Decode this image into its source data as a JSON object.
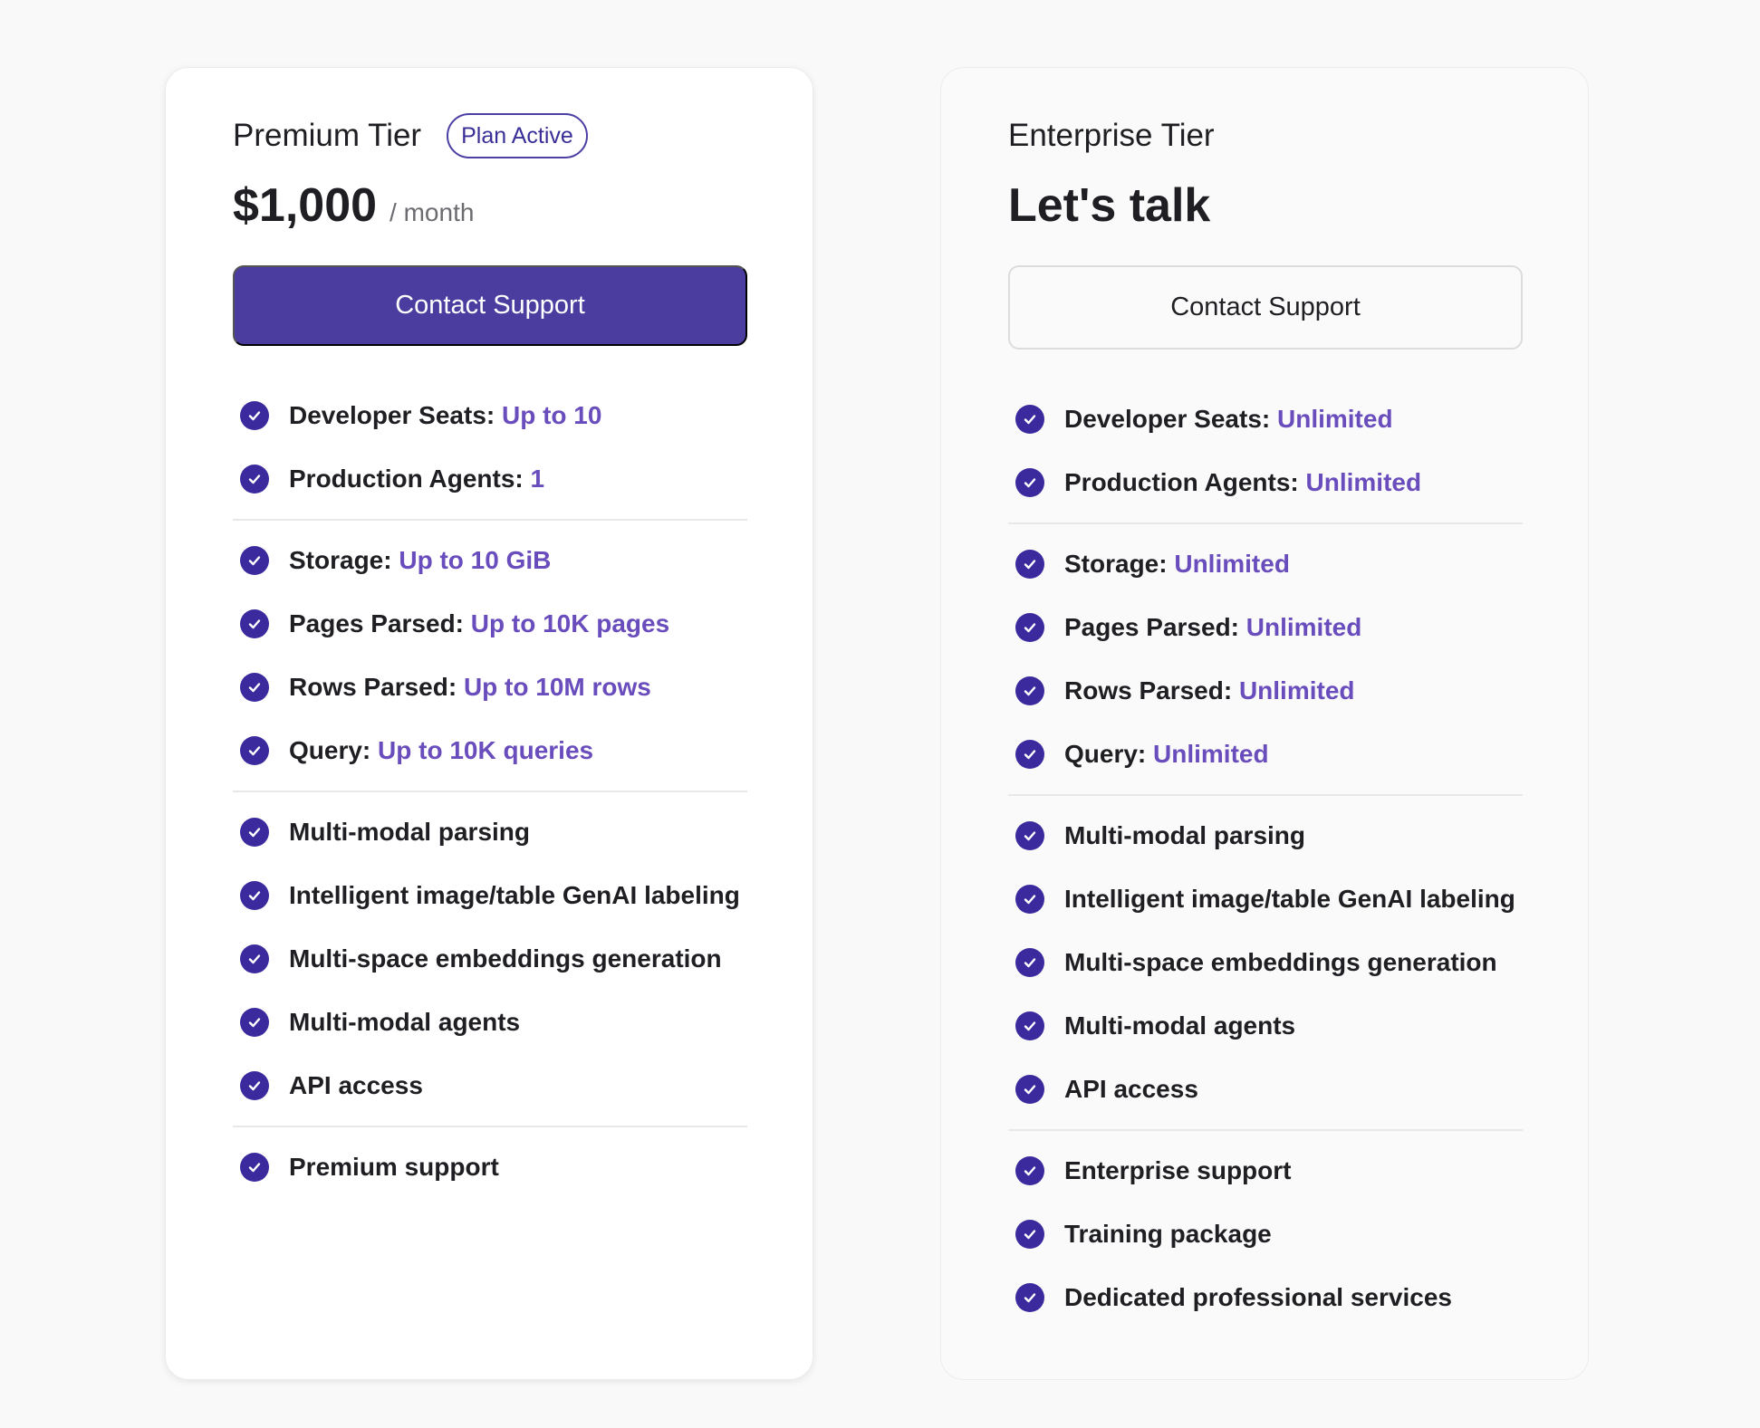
{
  "colors": {
    "accent": "#4a3d9f",
    "check": "#3b2a9e",
    "value": "#6a4dbd",
    "badge_border": "#4b3fa3"
  },
  "premium": {
    "name": "Premium Tier",
    "badge": "Plan Active",
    "price": "$1,000",
    "period": "/ month",
    "button": "Contact Support",
    "groups": [
      [
        {
          "label": "Developer Seats:",
          "value": "Up to 10"
        },
        {
          "label": "Production Agents:",
          "value": "1"
        }
      ],
      [
        {
          "label": "Storage:",
          "value": "Up to 10 GiB"
        },
        {
          "label": "Pages Parsed:",
          "value": "Up to 10K pages"
        },
        {
          "label": "Rows Parsed:",
          "value": "Up to 10M rows"
        },
        {
          "label": "Query:",
          "value": "Up to 10K queries"
        }
      ],
      [
        {
          "label": "Multi-modal parsing"
        },
        {
          "label": "Intelligent image/table GenAI labeling"
        },
        {
          "label": "Multi-space embeddings generation"
        },
        {
          "label": "Multi-modal agents"
        },
        {
          "label": "API access"
        }
      ],
      [
        {
          "label": "Premium support"
        }
      ]
    ]
  },
  "enterprise": {
    "name": "Enterprise Tier",
    "headline": "Let's talk",
    "button": "Contact Support",
    "groups": [
      [
        {
          "label": "Developer Seats:",
          "value": "Unlimited"
        },
        {
          "label": "Production Agents:",
          "value": "Unlimited"
        }
      ],
      [
        {
          "label": "Storage:",
          "value": "Unlimited"
        },
        {
          "label": "Pages Parsed:",
          "value": "Unlimited"
        },
        {
          "label": "Rows Parsed:",
          "value": "Unlimited"
        },
        {
          "label": "Query:",
          "value": "Unlimited"
        }
      ],
      [
        {
          "label": "Multi-modal parsing"
        },
        {
          "label": "Intelligent image/table GenAI labeling"
        },
        {
          "label": "Multi-space embeddings generation"
        },
        {
          "label": "Multi-modal agents"
        },
        {
          "label": "API access"
        }
      ],
      [
        {
          "label": "Enterprise support"
        },
        {
          "label": "Training package"
        },
        {
          "label": "Dedicated professional services"
        }
      ]
    ]
  }
}
